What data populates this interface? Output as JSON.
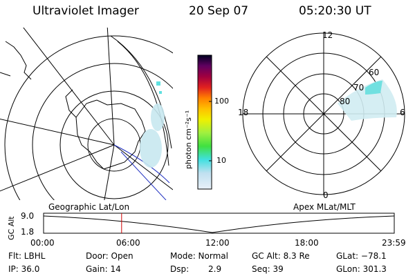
{
  "header": {
    "instrument": "Ultraviolet Imager",
    "date": "20 Sep 07",
    "time": "05:20:30 UT"
  },
  "colorbar": {
    "unit_label": "photon cm⁻²s⁻¹",
    "tick_100": "100",
    "tick_10": "10",
    "colors": [
      "#e8f0f8",
      "#c0e0f0",
      "#40e0e0",
      "#40e040",
      "#a0f040",
      "#f0f000",
      "#ffc000",
      "#ff8000",
      "#e02020",
      "#a00040",
      "#600060",
      "#200040",
      "#000020"
    ]
  },
  "polar_plot": {
    "mlt_12": "12",
    "mlt_18": "18",
    "mlt_6": "6",
    "mlt_0": "0",
    "lat_60": "60",
    "lat_70": "70",
    "lat_80": "80"
  },
  "timeline": {
    "left_label": "Geographic Lat/Lon",
    "right_label": "Apex MLat/MLT",
    "axis_label": "GC Alt",
    "y_top": "9.0",
    "y_bottom": "1.8",
    "x_ticks": [
      "00:00",
      "06:00",
      "12:00",
      "18:00",
      "23:59"
    ],
    "marker_time_hours": 5.34
  },
  "info": {
    "flt": "Flt: LBHL",
    "door": "Door: Open",
    "mode": "Mode:  Normal",
    "gc_alt": "GC Alt: 8.3 Re",
    "glat": "GLat: −78.1",
    "ip": "IP: 36.0",
    "gain": "Gain: 14",
    "dsp_label": "Dsp:",
    "dsp_value": "2.9",
    "seq": "Seq: 39",
    "glon": "GLon: 301.3"
  }
}
